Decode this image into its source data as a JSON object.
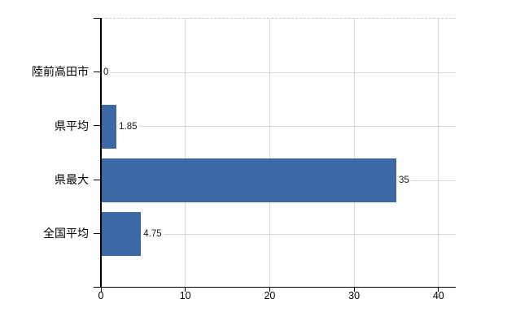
{
  "chart_data": {
    "type": "bar",
    "orientation": "horizontal",
    "title": "",
    "xlabel": "",
    "ylabel": "",
    "categories": [
      "陸前高田市",
      "県平均",
      "県最大",
      "全国平均"
    ],
    "values": [
      0,
      1.85,
      35,
      4.75
    ],
    "value_labels": [
      "0",
      "1.85",
      "35",
      "4.75"
    ],
    "x_ticks": [
      0,
      10,
      20,
      30,
      40
    ],
    "x_tick_labels": [
      "0",
      "10",
      "20",
      "30",
      "40"
    ],
    "xlim": [
      0,
      42
    ],
    "grid": "on",
    "legend": "none",
    "bar_color": "#3c69a5",
    "gridline_color": "#d9d9d9",
    "plot_border_color": "#cccccc",
    "axis_color": "#000000",
    "background_color": "#ffffff"
  }
}
